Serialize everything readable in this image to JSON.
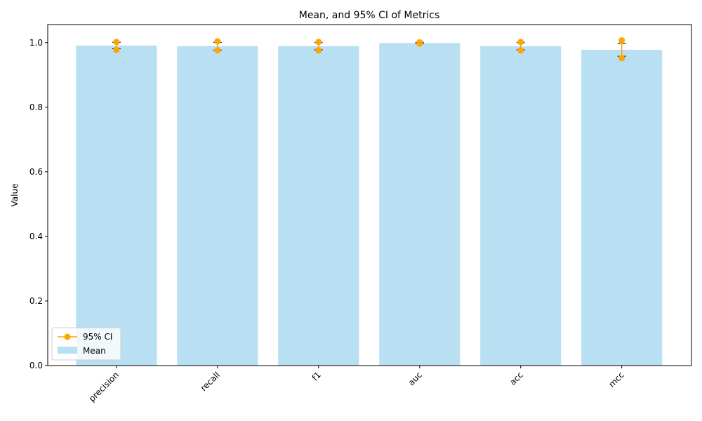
{
  "chart_data": {
    "type": "bar",
    "title": "Mean, and 95% CI of Metrics",
    "y_label": "Value",
    "categories": [
      "precision",
      "recall",
      "f1",
      "auc",
      "acc",
      "mcc"
    ],
    "series": [
      {
        "name": "Mean",
        "color": "#b8e0f2",
        "values": [
          0.991,
          0.989,
          0.989,
          0.999,
          0.989,
          0.978
        ],
        "errors": [
          0.01,
          0.012,
          0.011,
          0.002,
          0.011,
          0.02
        ],
        "error_color": "#000000"
      },
      {
        "name": "95% CI",
        "color": "#ffa500",
        "lower": [
          0.978,
          0.976,
          0.976,
          0.997,
          0.976,
          0.952
        ],
        "upper": [
          1.002,
          1.004,
          1.002,
          1.001,
          1.002,
          1.007
        ]
      }
    ],
    "ylim": [
      0,
      1.056
    ],
    "yticks": [
      0.0,
      0.2,
      0.4,
      0.6,
      0.8,
      1.0
    ],
    "yticks_labels": [
      "0.0",
      "0.2",
      "0.4",
      "0.6",
      "0.8",
      "1.0"
    ],
    "legend": "lower left"
  }
}
